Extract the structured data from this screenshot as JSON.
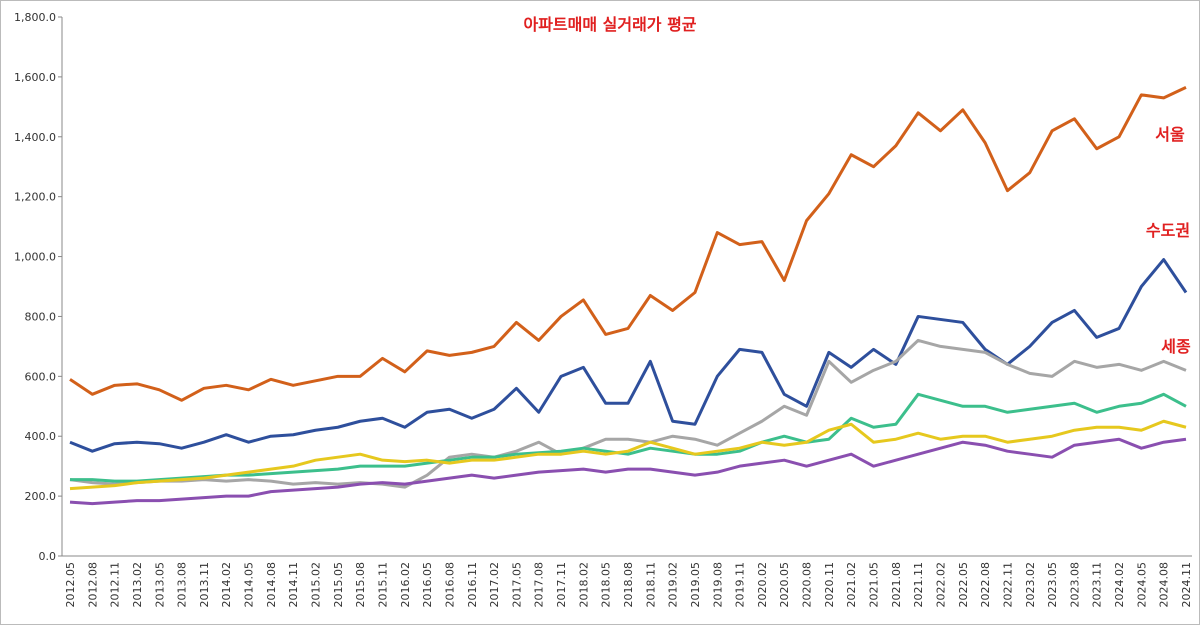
{
  "chart_data": {
    "type": "line",
    "title": "아파트매매 실거래가 평균",
    "categories": [
      "2012.05",
      "2012.08",
      "2012.11",
      "2013.02",
      "2013.05",
      "2013.08",
      "2013.11",
      "2014.02",
      "2014.05",
      "2014.08",
      "2014.11",
      "2015.02",
      "2015.05",
      "2015.08",
      "2015.11",
      "2016.02",
      "2016.05",
      "2016.08",
      "2016.11",
      "2017.02",
      "2017.05",
      "2017.08",
      "2017.11",
      "2018.02",
      "2018.05",
      "2018.08",
      "2018.11",
      "2019.02",
      "2019.05",
      "2019.08",
      "2019.11",
      "2020.02",
      "2020.05",
      "2020.08",
      "2020.11",
      "2021.02",
      "2021.05",
      "2021.08",
      "2021.11",
      "2022.02",
      "2022.05",
      "2022.08",
      "2022.11",
      "2023.02",
      "2023.05",
      "2023.08",
      "2023.11",
      "2024.02",
      "2024.05",
      "2024.08",
      "2024.11"
    ],
    "series": [
      {
        "name": "서울",
        "color": "#d2601a",
        "values": [
          590,
          540,
          570,
          575,
          555,
          520,
          560,
          570,
          555,
          590,
          570,
          585,
          600,
          600,
          660,
          615,
          685,
          670,
          680,
          700,
          780,
          720,
          800,
          855,
          740,
          760,
          870,
          820,
          880,
          1080,
          1040,
          1050,
          920,
          1120,
          1210,
          1340,
          1300,
          1370,
          1480,
          1420,
          1490,
          1380,
          1220,
          1280,
          1420,
          1460,
          1360,
          1400,
          1540,
          1530,
          1565
        ]
      },
      {
        "name": "수도권",
        "color": "#2e4f9c",
        "values": [
          380,
          350,
          375,
          380,
          375,
          360,
          380,
          405,
          380,
          400,
          405,
          420,
          430,
          450,
          460,
          430,
          480,
          490,
          460,
          490,
          560,
          480,
          600,
          630,
          510,
          510,
          650,
          450,
          440,
          600,
          690,
          680,
          540,
          500,
          680,
          630,
          690,
          640,
          800,
          790,
          780,
          690,
          640,
          700,
          780,
          820,
          730,
          760,
          900,
          990,
          880
        ]
      },
      {
        "name": "세종",
        "color": "#a6a6a6",
        "values": [
          255,
          245,
          240,
          245,
          250,
          250,
          255,
          250,
          255,
          250,
          240,
          245,
          240,
          245,
          240,
          230,
          270,
          330,
          340,
          330,
          350,
          380,
          340,
          360,
          390,
          390,
          380,
          400,
          390,
          370,
          410,
          450,
          500,
          470,
          650,
          580,
          620,
          650,
          720,
          700,
          690,
          680,
          640,
          610,
          600,
          650,
          630,
          640,
          620,
          650,
          620
        ]
      },
      {
        "color": "#3cbf8c",
        "values": [
          255,
          255,
          250,
          250,
          255,
          260,
          265,
          270,
          270,
          275,
          280,
          285,
          290,
          300,
          300,
          300,
          310,
          320,
          330,
          330,
          340,
          345,
          350,
          360,
          350,
          340,
          360,
          350,
          340,
          340,
          350,
          380,
          400,
          380,
          390,
          460,
          430,
          440,
          540,
          520,
          500,
          500,
          480,
          490,
          500,
          510,
          480,
          500,
          510,
          540,
          500
        ]
      },
      {
        "color": "#e6c81e",
        "values": [
          225,
          230,
          235,
          245,
          250,
          255,
          260,
          270,
          280,
          290,
          300,
          320,
          330,
          340,
          320,
          315,
          320,
          310,
          320,
          320,
          330,
          340,
          340,
          350,
          340,
          350,
          380,
          360,
          340,
          350,
          360,
          380,
          370,
          380,
          420,
          440,
          380,
          390,
          410,
          390,
          400,
          400,
          380,
          390,
          400,
          420,
          430,
          430,
          420,
          450,
          430
        ]
      },
      {
        "color": "#8a4fb0",
        "values": [
          180,
          175,
          180,
          185,
          185,
          190,
          195,
          200,
          200,
          215,
          220,
          225,
          230,
          240,
          245,
          240,
          250,
          260,
          270,
          260,
          270,
          280,
          285,
          290,
          280,
          290,
          290,
          280,
          270,
          280,
          300,
          310,
          320,
          300,
          320,
          340,
          300,
          320,
          340,
          360,
          380,
          370,
          350,
          340,
          330,
          370,
          380,
          390,
          360,
          380,
          390
        ]
      }
    ],
    "ylim": [
      0,
      1800
    ],
    "yticks": [
      {
        "value": 0,
        "label": "0.0"
      },
      {
        "value": 200,
        "label": "200.0"
      },
      {
        "value": 400,
        "label": "400.0"
      },
      {
        "value": 600,
        "label": "600.0"
      },
      {
        "value": 800,
        "label": "800.0"
      },
      {
        "value": 1000,
        "label": "1,000.0"
      },
      {
        "value": 1200,
        "label": "1,200.0"
      },
      {
        "value": 1400,
        "label": "1,400.0"
      },
      {
        "value": 1600,
        "label": "1,600.0"
      },
      {
        "value": 1800,
        "label": "1,800.0"
      }
    ],
    "grid": false
  }
}
